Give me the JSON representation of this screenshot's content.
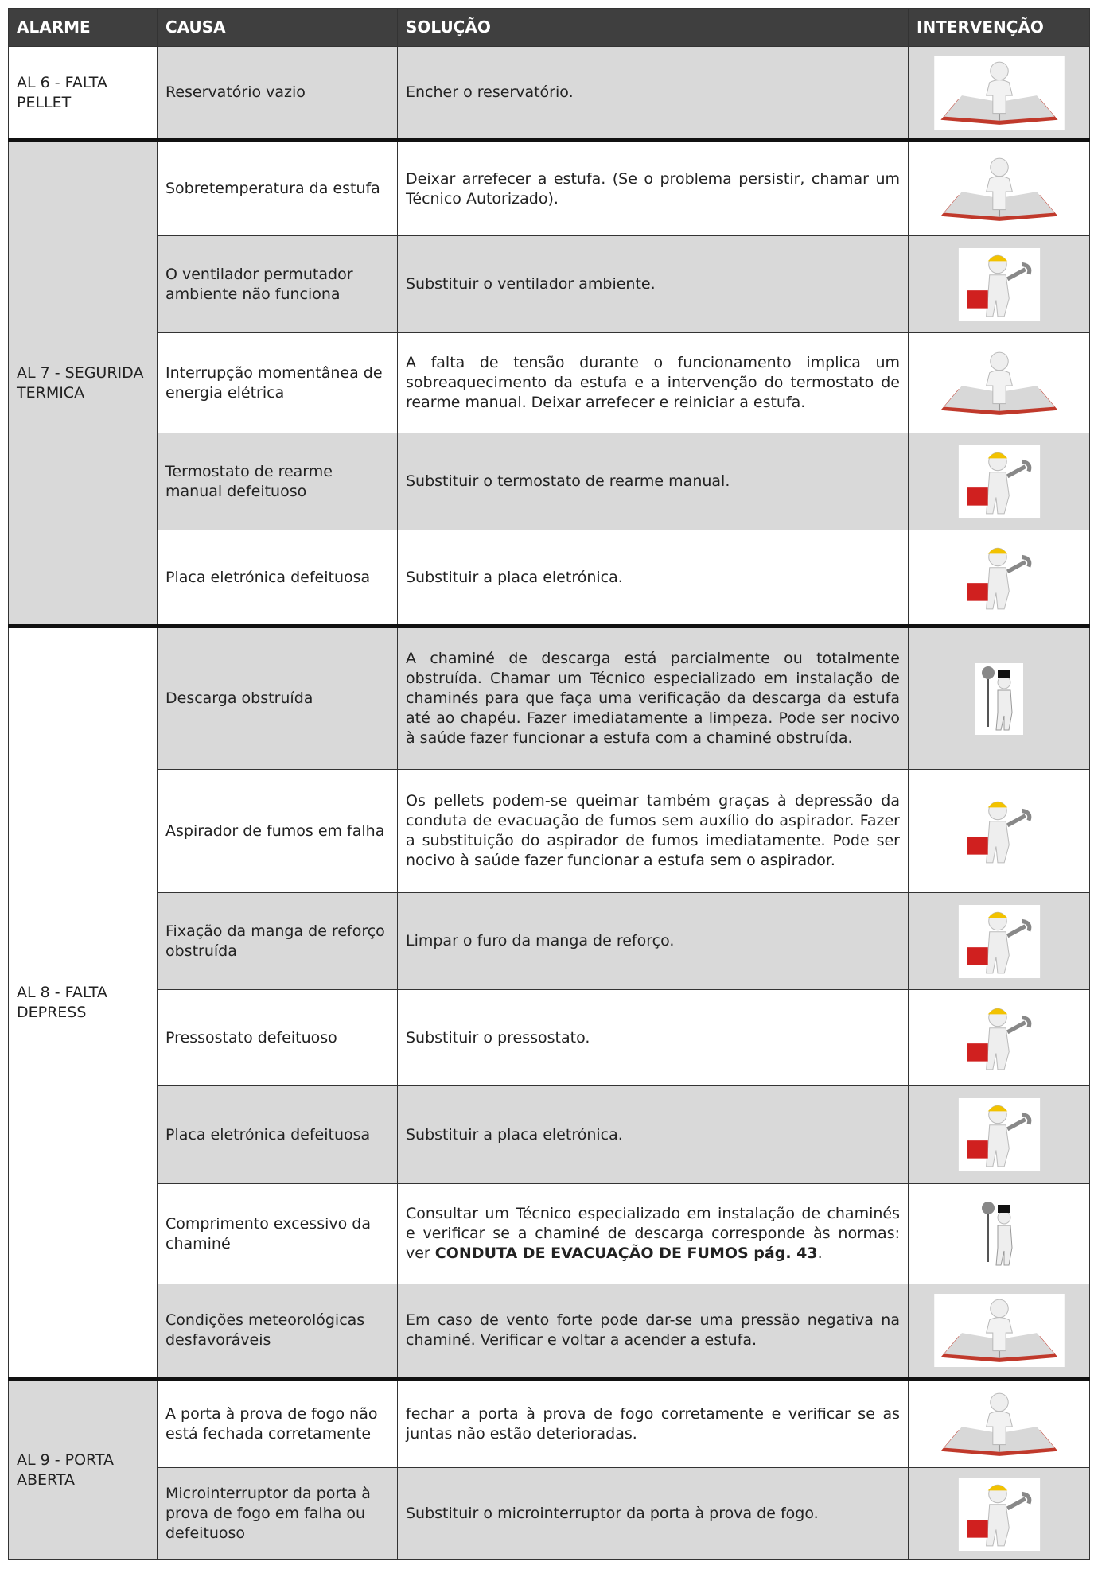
{
  "header": {
    "columns": [
      "ALARME",
      "CAUSA",
      "SOLUÇÃO",
      "INTERVENÇÃO"
    ]
  },
  "groups": [
    {
      "alarm": "AL 6 - FALTA PELLET",
      "rows": [
        {
          "cause": "Reservatório vazio",
          "solution": "Encher o reservatório."
        }
      ]
    },
    {
      "alarm": "AL 7 - SEGURIDA TERMICA",
      "rows": [
        {
          "cause": "Sobretemperatura da estufa",
          "solution": "Deixar arrefecer a estufa. (Se o problema persistir, chamar um Técnico Autorizado)."
        },
        {
          "cause": "O ventilador permutador ambiente não funciona",
          "solution": "Substituir o ventilador ambiente."
        },
        {
          "cause": "Interrupção momentânea de energia elétrica",
          "solution": "A falta de tensão durante o funcionamento implica um sobreaquecimento da estufa e a intervenção do termostato de rearme manual. Deixar arrefecer e reiniciar a estufa."
        },
        {
          "cause": "Termostato de rearme manual defeituoso",
          "solution": "Substituir o termostato de rearme manual."
        },
        {
          "cause": "Placa eletrónica defeituosa",
          "solution": "Substituir a placa eletrónica."
        }
      ]
    },
    {
      "alarm": "AL 8 - FALTA DEPRESS",
      "rows": [
        {
          "cause": "Descarga obstruída",
          "solution": "A chaminé de descarga está parcialmente ou totalmente obstruída. Chamar um Técnico especializado em instalação de chaminés para que faça uma verificação da descarga da estufa até ao chapéu. Fazer imediatamente a limpeza. Pode ser nocivo à saúde fazer funcionar a estufa com a chaminé obstruída."
        },
        {
          "cause": "Aspirador de fumos em falha",
          "solution": "Os pellets podem-se queimar também graças à depressão da conduta de evacuação de fumos sem auxílio do aspirador. Fazer a substituição do aspirador de fumos imediatamente. Pode ser nocivo à saúde fazer funcionar a estufa sem o aspirador."
        },
        {
          "cause": "Fixação da manga de reforço obstruída",
          "solution": "Limpar o furo da manga de reforço."
        },
        {
          "cause": "Pressostato defeituoso",
          "solution": "Substituir o pressostato."
        },
        {
          "cause": "Placa eletrónica defeituosa",
          "solution": "Substituir a placa eletrónica."
        },
        {
          "cause": "Comprimento excessivo da chaminé",
          "solution": [
            "Consultar um Técnico especializado em instalação de chaminés e verificar se a chaminé de descarga corresponde às normas: ver ",
            "CONDUTA DE EVACUAÇÃO DE FUMOS  pág. 43",
            "."
          ]
        },
        {
          "cause": "Condições meteorológicas desfavoráveis",
          "solution": "Em caso de vento forte pode dar-se uma pressão negativa na chaminé. Verificar e voltar a acender a estufa."
        }
      ]
    },
    {
      "alarm": "AL 9 - PORTA ABERTA",
      "rows": [
        {
          "cause": "A porta à prova de fogo não está fechada corretamente",
          "solution": "fechar a porta à prova de fogo corretamente e verificar se as juntas não estão deterioradas."
        },
        {
          "cause": "Microinterruptor da porta à prova de fogo em falha ou defeituoso",
          "solution": "Substituir o microinterruptor da porta à prova de fogo."
        }
      ]
    }
  ]
}
